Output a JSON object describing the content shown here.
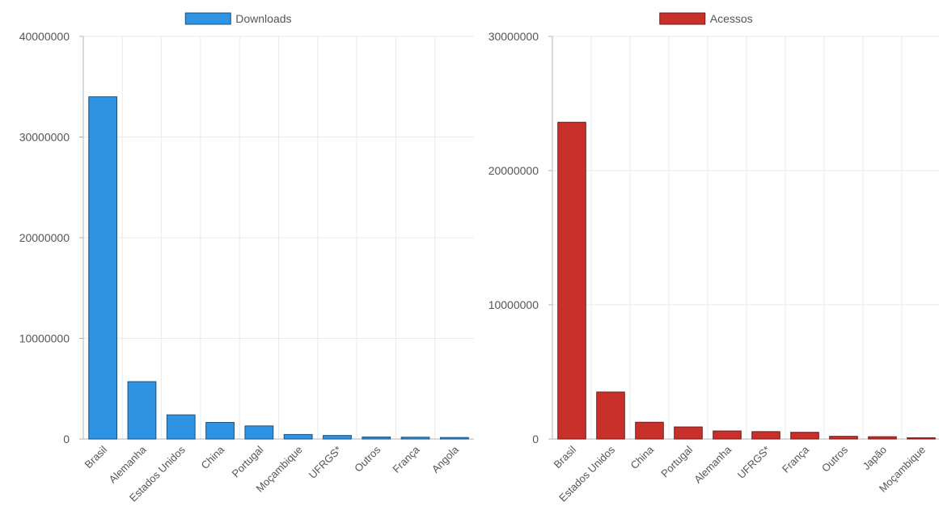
{
  "chart_data": [
    {
      "type": "bar",
      "categories": [
        "Brasil",
        "Alemanha",
        "Estados Unidos",
        "China",
        "Portugal",
        "Moçambique",
        "UFRGS*",
        "Outros",
        "França",
        "Angola"
      ],
      "series": [
        {
          "name": "Downloads",
          "color": "#2e93e3",
          "values": [
            34000000,
            5700000,
            2400000,
            1650000,
            1300000,
            450000,
            350000,
            200000,
            180000,
            150000
          ]
        }
      ],
      "yticks": [
        0,
        10000000,
        20000000,
        30000000,
        40000000
      ],
      "ytick_labels": [
        "0",
        "10000000",
        "20000000",
        "30000000",
        "40000000"
      ],
      "ylim": [
        0,
        40000000
      ],
      "grid": true,
      "legend": "top-center"
    },
    {
      "type": "bar",
      "categories": [
        "Brasil",
        "Estados Unidos",
        "China",
        "Portugal",
        "Alemanha",
        "UFRGS*",
        "França",
        "Outros",
        "Japão",
        "Moçambique"
      ],
      "series": [
        {
          "name": "Acessos",
          "color": "#c9302c",
          "values": [
            23600000,
            3500000,
            1250000,
            900000,
            600000,
            550000,
            500000,
            200000,
            170000,
            80000
          ]
        }
      ],
      "yticks": [
        0,
        10000000,
        20000000,
        30000000
      ],
      "ytick_labels": [
        "0",
        "10000000",
        "20000000",
        "30000000"
      ],
      "ylim": [
        0,
        30000000
      ],
      "grid": true,
      "legend": "top-center"
    }
  ]
}
